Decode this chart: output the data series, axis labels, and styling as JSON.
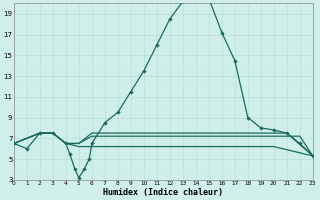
{
  "xlabel": "Humidex (Indice chaleur)",
  "xlim": [
    0,
    23
  ],
  "ylim": [
    3,
    20
  ],
  "yticks": [
    3,
    5,
    7,
    9,
    11,
    13,
    15,
    17,
    19
  ],
  "xticks": [
    0,
    1,
    2,
    3,
    4,
    5,
    6,
    7,
    8,
    9,
    10,
    11,
    12,
    13,
    14,
    15,
    16,
    17,
    18,
    19,
    20,
    21,
    22,
    23
  ],
  "bg_color": "#d0eeea",
  "line_color": "#1a6b5e",
  "grid_major_color": "#b8ddd8",
  "grid_minor_color": "#c8e8e4",
  "curve1_x": [
    0,
    1,
    2,
    3,
    4,
    4.3,
    4.7,
    5.0,
    5.4,
    5.8,
    6,
    7,
    8,
    9,
    10,
    11,
    12,
    13,
    14,
    14.5,
    15,
    16,
    17,
    18,
    19,
    20,
    21,
    22,
    23
  ],
  "curve1_y": [
    6.5,
    6.0,
    7.5,
    7.5,
    6.5,
    5.5,
    4.0,
    3.2,
    4.0,
    5.0,
    6.5,
    8.5,
    9.5,
    11.5,
    13.5,
    16.0,
    18.5,
    20.2,
    20.7,
    20.9,
    20.5,
    17.2,
    14.5,
    9.0,
    8.0,
    7.8,
    7.5,
    6.5,
    5.3
  ],
  "curve2_x": [
    0,
    2,
    3,
    4,
    5,
    6,
    18,
    21,
    23
  ],
  "curve2_y": [
    6.5,
    7.5,
    7.5,
    6.5,
    6.5,
    7.5,
    7.5,
    7.5,
    5.3
  ],
  "curve3_x": [
    0,
    2,
    3,
    4,
    5,
    6,
    19,
    22,
    23
  ],
  "curve3_y": [
    6.5,
    7.5,
    7.5,
    6.5,
    6.5,
    7.2,
    7.2,
    7.2,
    5.3
  ],
  "curve4_x": [
    0,
    2,
    3,
    4,
    5,
    6,
    20,
    23
  ],
  "curve4_y": [
    6.5,
    7.5,
    7.5,
    6.5,
    6.2,
    6.2,
    6.2,
    5.3
  ]
}
